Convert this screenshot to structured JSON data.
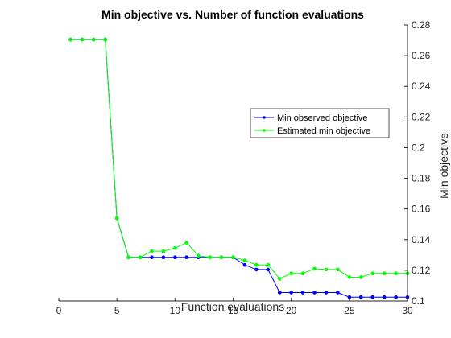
{
  "chart_data": {
    "type": "line",
    "title": "Min objective vs. Number of function evaluations",
    "xlabel": "Function evaluations",
    "ylabel": "Min objective",
    "xlim": [
      0,
      30
    ],
    "ylim": [
      0.1,
      0.28
    ],
    "xticks": [
      0,
      5,
      10,
      15,
      20,
      25,
      30
    ],
    "yticks": [
      0.1,
      0.12,
      0.14,
      0.16,
      0.18,
      0.2,
      0.22,
      0.24,
      0.26,
      0.28
    ],
    "ytick_labels": [
      "0.1",
      "0.12",
      "0.14",
      "0.16",
      "0.18",
      "0.2",
      "0.22",
      "0.24",
      "0.26",
      "0.28"
    ],
    "y_axis_position": "right",
    "grid": false,
    "legend_position": "right",
    "x": [
      1,
      2,
      3,
      4,
      5,
      6,
      7,
      8,
      9,
      10,
      11,
      12,
      13,
      14,
      15,
      16,
      17,
      18,
      19,
      20,
      21,
      22,
      23,
      24,
      25,
      26,
      27,
      28,
      29,
      30
    ],
    "series": [
      {
        "name": "Min observed objective",
        "color": "#0000ff",
        "values": [
          0.2705,
          0.2705,
          0.2705,
          0.2705,
          0.154,
          0.1285,
          0.1285,
          0.1285,
          0.1285,
          0.1285,
          0.1285,
          0.1285,
          0.1285,
          0.1285,
          0.1285,
          0.1235,
          0.1205,
          0.1205,
          0.1055,
          0.1055,
          0.1055,
          0.1055,
          0.1055,
          0.1055,
          0.1025,
          0.1025,
          0.1025,
          0.1025,
          0.1025,
          0.1025
        ]
      },
      {
        "name": "Estimated min objective",
        "color": "#00ff00",
        "values": [
          0.2705,
          0.2705,
          0.2705,
          0.2705,
          0.154,
          0.1285,
          0.1285,
          0.1325,
          0.1325,
          0.1345,
          0.138,
          0.1295,
          0.1285,
          0.1285,
          0.1285,
          0.1265,
          0.1235,
          0.1235,
          0.1145,
          0.118,
          0.118,
          0.121,
          0.1205,
          0.1205,
          0.1155,
          0.1155,
          0.118,
          0.118,
          0.118,
          0.118
        ]
      }
    ]
  }
}
